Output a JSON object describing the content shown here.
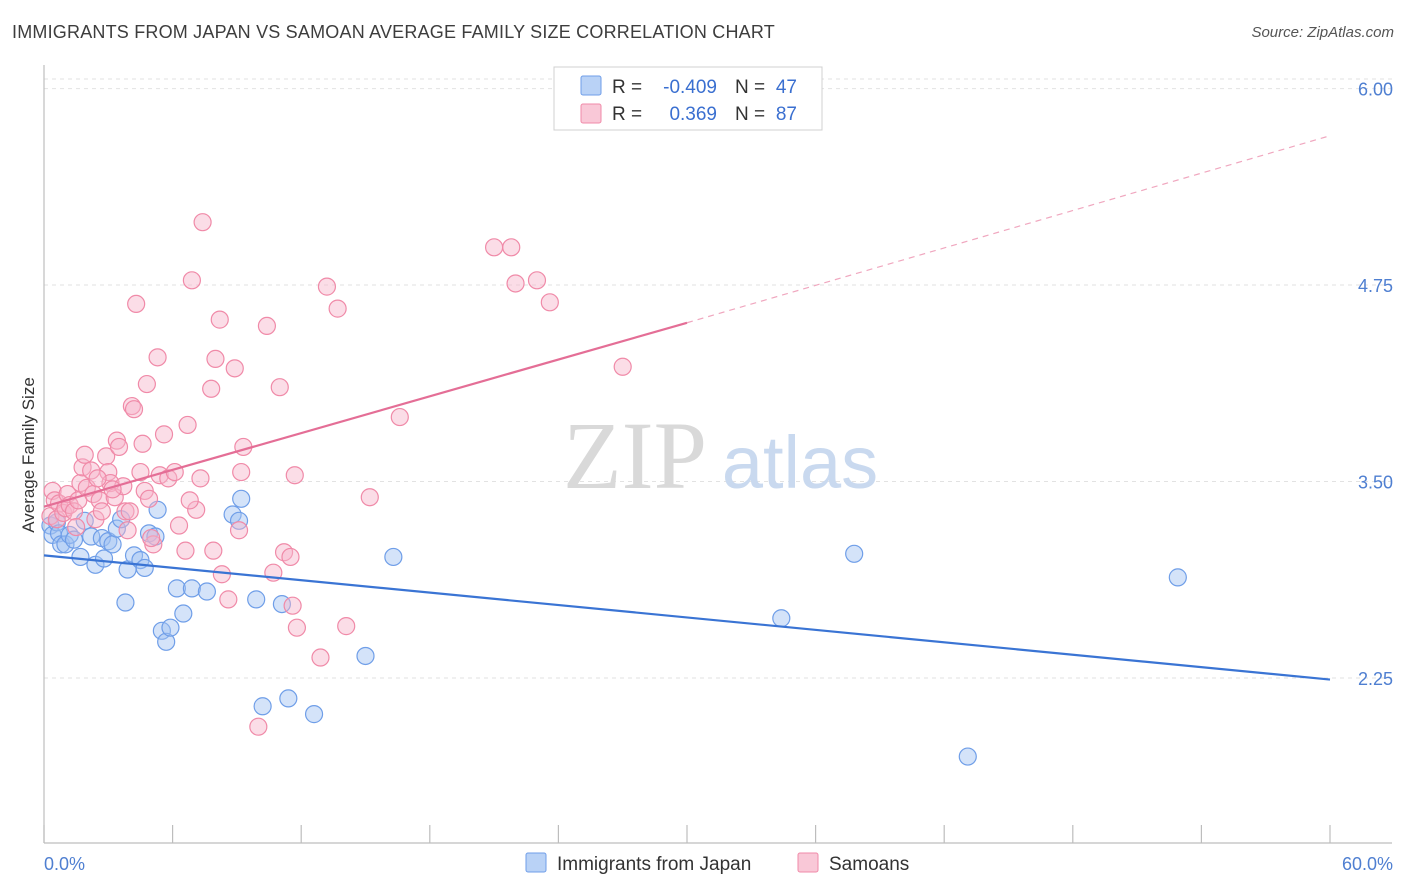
{
  "title": "IMMIGRANTS FROM JAPAN VS SAMOAN AVERAGE FAMILY SIZE CORRELATION CHART",
  "source": "Source: ZipAtlas.com",
  "watermark": {
    "zip": "ZIP",
    "atlas": "atlas"
  },
  "legend": {
    "rows": [
      {
        "r_label": "R =",
        "r_value": "-0.409",
        "n_label": "N =",
        "n_value": "47"
      },
      {
        "r_label": "R =",
        "r_value": "0.369",
        "n_label": "N =",
        "n_value": "87"
      }
    ]
  },
  "chart_data": {
    "type": "scatter",
    "title": "IMMIGRANTS FROM JAPAN VS SAMOAN AVERAGE FAMILY SIZE CORRELATION CHART",
    "xlabel": "",
    "ylabel": "Average Family Size",
    "xlim": [
      0,
      60
    ],
    "ylim": [
      1.2,
      6.15
    ],
    "x_tick_labels": [
      "0.0%",
      "60.0%"
    ],
    "y_ticks": [
      2.25,
      3.5,
      4.75,
      6.0
    ],
    "y_tick_labels": [
      "2.25",
      "3.50",
      "4.75",
      "6.00"
    ],
    "grid": true,
    "legend_placement": "top-center",
    "colors": {
      "japan": "#6f9ee8",
      "samoan": "#f08aa8",
      "japan_line": "#3a74d4",
      "samoan_line": "#e46e96"
    },
    "series": [
      {
        "name": "Immigrants from Japan",
        "key": "japan",
        "points": [
          [
            0.3,
            3.22
          ],
          [
            0.4,
            3.16
          ],
          [
            0.6,
            3.24
          ],
          [
            0.7,
            3.17
          ],
          [
            0.8,
            3.1
          ],
          [
            1.0,
            3.1
          ],
          [
            1.2,
            3.16
          ],
          [
            1.4,
            3.13
          ],
          [
            1.7,
            3.02
          ],
          [
            1.9,
            3.25
          ],
          [
            2.2,
            3.15
          ],
          [
            2.4,
            2.97
          ],
          [
            2.7,
            3.14
          ],
          [
            2.8,
            3.01
          ],
          [
            3.0,
            3.12
          ],
          [
            3.2,
            3.1
          ],
          [
            3.4,
            3.2
          ],
          [
            3.6,
            3.26
          ],
          [
            3.8,
            2.73
          ],
          [
            3.9,
            2.94
          ],
          [
            4.2,
            3.03
          ],
          [
            4.5,
            3.0
          ],
          [
            4.7,
            2.95
          ],
          [
            4.9,
            3.17
          ],
          [
            5.2,
            3.15
          ],
          [
            5.3,
            3.32
          ],
          [
            5.5,
            2.55
          ],
          [
            5.7,
            2.48
          ],
          [
            5.9,
            2.57
          ],
          [
            6.2,
            2.82
          ],
          [
            6.5,
            2.66
          ],
          [
            6.9,
            2.82
          ],
          [
            7.6,
            2.8
          ],
          [
            8.8,
            3.29
          ],
          [
            9.1,
            3.25
          ],
          [
            9.2,
            3.39
          ],
          [
            9.9,
            2.75
          ],
          [
            10.2,
            2.07
          ],
          [
            11.1,
            2.72
          ],
          [
            11.4,
            2.12
          ],
          [
            12.6,
            2.02
          ],
          [
            15.0,
            2.39
          ],
          [
            16.3,
            3.02
          ],
          [
            34.4,
            2.63
          ],
          [
            37.8,
            3.04
          ],
          [
            43.1,
            1.75
          ],
          [
            52.9,
            2.89
          ]
        ],
        "trend": [
          [
            0,
            3.03
          ],
          [
            60,
            2.24
          ]
        ]
      },
      {
        "name": "Samoans",
        "key": "samoan",
        "points": [
          [
            0.3,
            3.28
          ],
          [
            0.4,
            3.44
          ],
          [
            0.5,
            3.38
          ],
          [
            0.6,
            3.26
          ],
          [
            0.7,
            3.36
          ],
          [
            0.9,
            3.3
          ],
          [
            1.0,
            3.33
          ],
          [
            1.1,
            3.42
          ],
          [
            1.2,
            3.35
          ],
          [
            1.4,
            3.31
          ],
          [
            1.6,
            3.38
          ],
          [
            1.7,
            3.49
          ],
          [
            1.8,
            3.59
          ],
          [
            1.9,
            3.67
          ],
          [
            2.0,
            3.46
          ],
          [
            2.2,
            3.57
          ],
          [
            2.3,
            3.42
          ],
          [
            2.4,
            3.26
          ],
          [
            2.6,
            3.38
          ],
          [
            2.7,
            3.31
          ],
          [
            2.9,
            3.66
          ],
          [
            3.0,
            3.56
          ],
          [
            3.1,
            3.49
          ],
          [
            3.3,
            3.4
          ],
          [
            3.4,
            3.76
          ],
          [
            3.5,
            3.72
          ],
          [
            3.7,
            3.47
          ],
          [
            3.8,
            3.31
          ],
          [
            3.9,
            3.19
          ],
          [
            4.0,
            3.31
          ],
          [
            4.1,
            3.98
          ],
          [
            4.2,
            3.96
          ],
          [
            4.3,
            4.63
          ],
          [
            4.5,
            3.56
          ],
          [
            4.6,
            3.74
          ],
          [
            4.7,
            3.44
          ],
          [
            4.8,
            4.12
          ],
          [
            4.9,
            3.39
          ],
          [
            5.1,
            3.1
          ],
          [
            5.3,
            4.29
          ],
          [
            5.4,
            3.54
          ],
          [
            5.6,
            3.8
          ],
          [
            5.8,
            3.52
          ],
          [
            6.1,
            3.56
          ],
          [
            6.3,
            3.22
          ],
          [
            6.6,
            3.06
          ],
          [
            6.7,
            3.86
          ],
          [
            6.9,
            4.78
          ],
          [
            7.1,
            3.32
          ],
          [
            7.3,
            3.52
          ],
          [
            7.4,
            5.15
          ],
          [
            7.8,
            4.09
          ],
          [
            7.9,
            3.06
          ],
          [
            8.0,
            4.28
          ],
          [
            8.2,
            4.53
          ],
          [
            8.3,
            2.91
          ],
          [
            8.6,
            2.75
          ],
          [
            8.9,
            4.22
          ],
          [
            9.1,
            3.19
          ],
          [
            9.2,
            3.56
          ],
          [
            9.3,
            3.72
          ],
          [
            10.0,
            1.94
          ],
          [
            10.4,
            4.49
          ],
          [
            10.7,
            2.92
          ],
          [
            11.0,
            4.1
          ],
          [
            11.2,
            3.05
          ],
          [
            11.6,
            2.71
          ],
          [
            11.7,
            3.54
          ],
          [
            11.8,
            2.57
          ],
          [
            12.9,
            2.38
          ],
          [
            13.2,
            4.74
          ],
          [
            13.7,
            4.6
          ],
          [
            14.1,
            2.58
          ],
          [
            15.2,
            3.4
          ],
          [
            16.6,
            3.91
          ],
          [
            21.0,
            4.99
          ],
          [
            21.8,
            4.99
          ],
          [
            22.0,
            4.76
          ],
          [
            23.0,
            4.78
          ],
          [
            23.6,
            4.64
          ],
          [
            27.0,
            4.23
          ],
          [
            11.5,
            3.02
          ],
          [
            6.8,
            3.38
          ],
          [
            5.0,
            3.14
          ],
          [
            2.5,
            3.52
          ],
          [
            3.2,
            3.45
          ],
          [
            1.5,
            3.21
          ]
        ],
        "trend": [
          [
            0,
            3.34
          ],
          [
            30,
            4.51
          ]
        ],
        "trend_extension": [
          [
            30,
            4.51
          ],
          [
            60,
            5.7
          ]
        ]
      }
    ]
  }
}
